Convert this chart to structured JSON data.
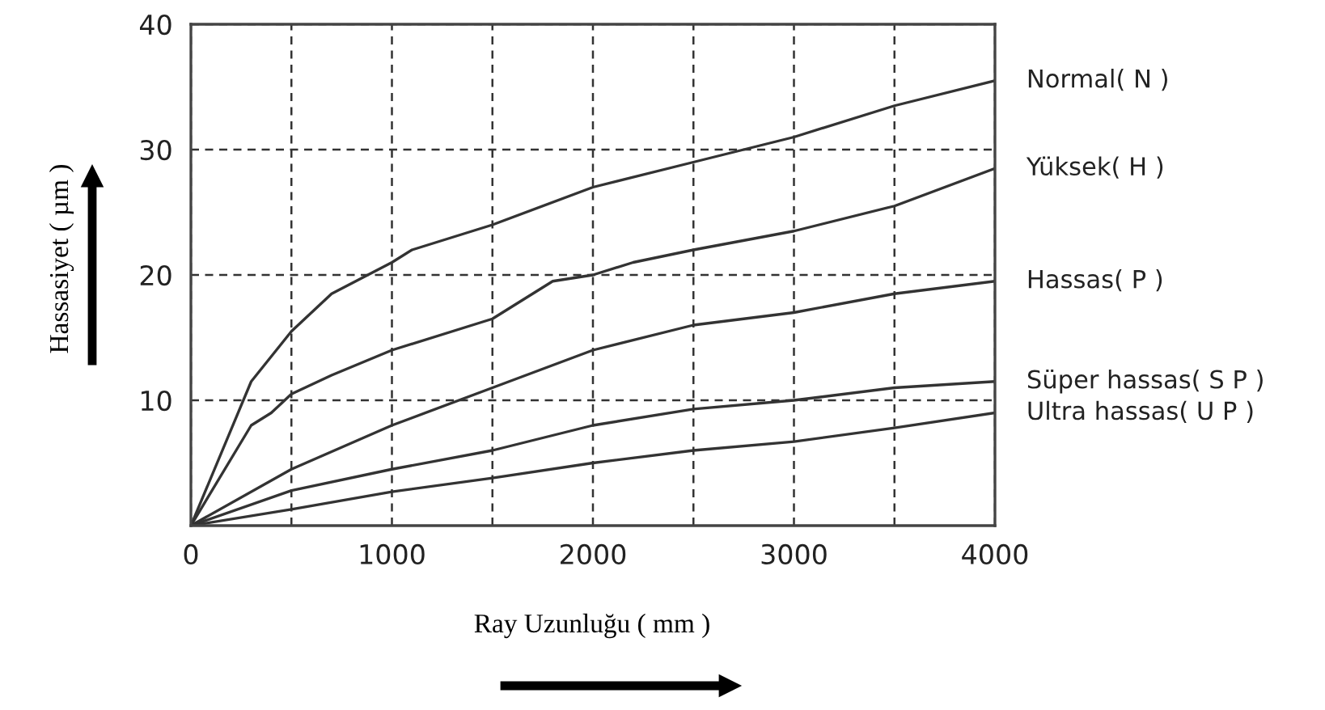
{
  "chart_data": {
    "type": "line",
    "xlabel": "Ray Uzunluğu ( mm )",
    "ylabel": "Hassasiyet ( µm )",
    "xlim": [
      0,
      4000
    ],
    "ylim": [
      0,
      40
    ],
    "xticks": [
      0,
      {
        "value": 500,
        "label": null
      },
      1000,
      {
        "value": 1500,
        "label": null
      },
      2000,
      {
        "value": 2500,
        "label": null
      },
      3000,
      {
        "value": 3500,
        "label": null
      },
      4000
    ],
    "yticks": [
      10,
      20,
      30,
      40
    ],
    "grid": true,
    "legend": false,
    "line_style": "solid",
    "marker": "none",
    "series": [
      {
        "name": "Normal( N )",
        "color": "#333333",
        "x": [
          0,
          300,
          500,
          700,
          1000,
          1100,
          1500,
          2000,
          2500,
          3000,
          3500,
          4000
        ],
        "values": [
          0,
          11.5,
          15.5,
          18.5,
          21,
          22,
          24,
          27,
          29,
          31,
          33.5,
          35.5
        ]
      },
      {
        "name": "Yüksek( H )",
        "color": "#333333",
        "x": [
          0,
          300,
          400,
          500,
          700,
          1000,
          1500,
          1800,
          2000,
          2200,
          2500,
          3000,
          3500,
          4000
        ],
        "values": [
          0,
          8,
          9,
          10.5,
          12,
          14,
          16.5,
          19.5,
          20,
          21,
          22,
          23.5,
          25.5,
          28.5
        ]
      },
      {
        "name": "Hassas( P )",
        "color": "#333333",
        "x": [
          0,
          500,
          1000,
          1500,
          2000,
          2500,
          3000,
          3500,
          4000
        ],
        "values": [
          0,
          4.5,
          8,
          11,
          14,
          16,
          17,
          18.5,
          19.5
        ]
      },
      {
        "name": "Süper hassas( S P )",
        "color": "#333333",
        "x": [
          0,
          500,
          1000,
          1500,
          2000,
          2500,
          3000,
          3500,
          4000
        ],
        "values": [
          0,
          2.8,
          4.5,
          6,
          8,
          9.3,
          10,
          11,
          11.5
        ]
      },
      {
        "name": "Ultra hassas( U P )",
        "color": "#333333",
        "x": [
          0,
          500,
          1000,
          1500,
          2000,
          2500,
          3000,
          3500,
          4000
        ],
        "values": [
          0,
          1.3,
          2.7,
          3.8,
          5,
          6,
          6.7,
          7.8,
          9
        ]
      }
    ]
  }
}
